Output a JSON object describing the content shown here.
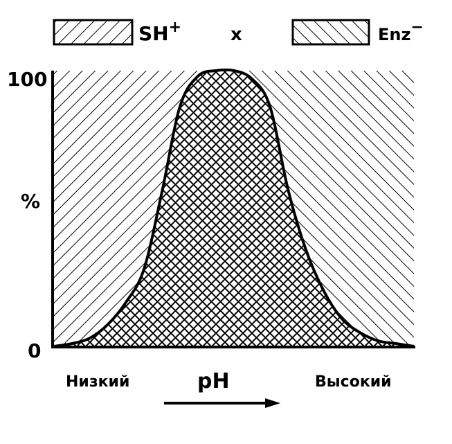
{
  "chart_data": {
    "type": "area",
    "legend": {
      "placement": "top",
      "items": [
        {
          "label": "SH",
          "superscript": "+",
          "pattern": "descending-hatch"
        },
        {
          "label": "x",
          "pattern": "none"
        },
        {
          "label": "Enz",
          "superscript": "−",
          "pattern": "ascending-hatch"
        }
      ]
    },
    "ylabel": "%",
    "xlabel": "pH",
    "x_tick_labels": {
      "left": "Низкий",
      "right": "Высокий"
    },
    "y_tick_labels": [
      "0",
      "100"
    ],
    "ylim": [
      0,
      100
    ],
    "xlim": [
      0,
      1
    ],
    "grid": false,
    "curve": {
      "description": "product SH+ x Enz−",
      "x": [
        0.0,
        0.05,
        0.1,
        0.15,
        0.2,
        0.25,
        0.3,
        0.35,
        0.4,
        0.45,
        0.5,
        0.55,
        0.6,
        0.65,
        0.7,
        0.75,
        0.8,
        0.85,
        0.9,
        0.95,
        1.0
      ],
      "y": [
        0,
        1,
        3,
        8,
        16,
        28,
        56,
        87,
        98,
        100,
        100,
        97,
        87,
        57,
        35,
        20,
        10,
        5,
        2,
        1,
        0
      ]
    },
    "colors": {
      "ink": "#000000",
      "background": "#ffffff"
    }
  }
}
